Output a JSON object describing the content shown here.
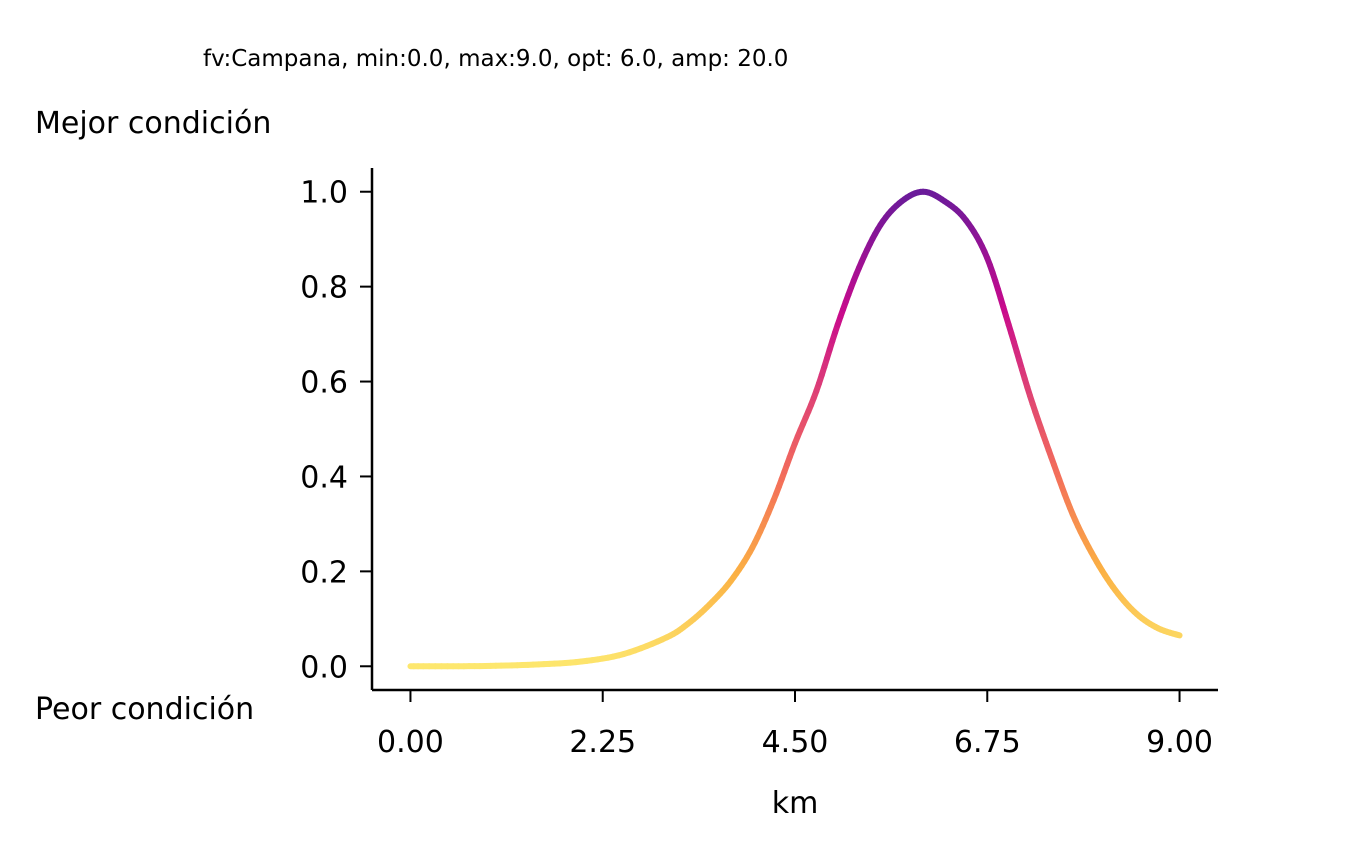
{
  "chart_data": {
    "type": "line",
    "title": "fv:Campana, min:0.0, max:9.0, opt: 6.0, amp: 20.0",
    "xlabel": "km",
    "ylabel_top": "Mejor condición",
    "ylabel_bottom": "Peor condición",
    "xlim": [
      -0.45,
      9.45
    ],
    "ylim": [
      -0.05,
      1.05
    ],
    "x_ticks": [
      "0.00",
      "2.25",
      "4.50",
      "6.75",
      "9.00"
    ],
    "y_ticks": [
      "0.0",
      "0.2",
      "0.4",
      "0.6",
      "0.8",
      "1.0"
    ],
    "series": [
      {
        "colormap": "plasma (value-colored)",
        "x": [
          0,
          0.5,
          1.0,
          1.5,
          2.0,
          2.5,
          3.0,
          3.25,
          3.5,
          3.75,
          4.0,
          4.25,
          4.5,
          4.75,
          5.0,
          5.25,
          5.5,
          5.75,
          6.0,
          6.25,
          6.5,
          6.75,
          7.0,
          7.25,
          7.5,
          7.75,
          8.0,
          8.25,
          8.5,
          8.75,
          9.0
        ],
        "y": [
          0.0,
          0.0,
          0.001,
          0.004,
          0.01,
          0.026,
          0.061,
          0.09,
          0.13,
          0.18,
          0.25,
          0.35,
          0.47,
          0.58,
          0.72,
          0.84,
          0.93,
          0.98,
          1.0,
          0.98,
          0.94,
          0.86,
          0.72,
          0.57,
          0.44,
          0.32,
          0.23,
          0.16,
          0.11,
          0.08,
          0.065
        ]
      }
    ],
    "grid": false
  },
  "colors": {
    "axis": "#000000",
    "curve_low": "#fde566",
    "curve_mid": "#f0645a",
    "curve_high": "#6a1b9a"
  }
}
